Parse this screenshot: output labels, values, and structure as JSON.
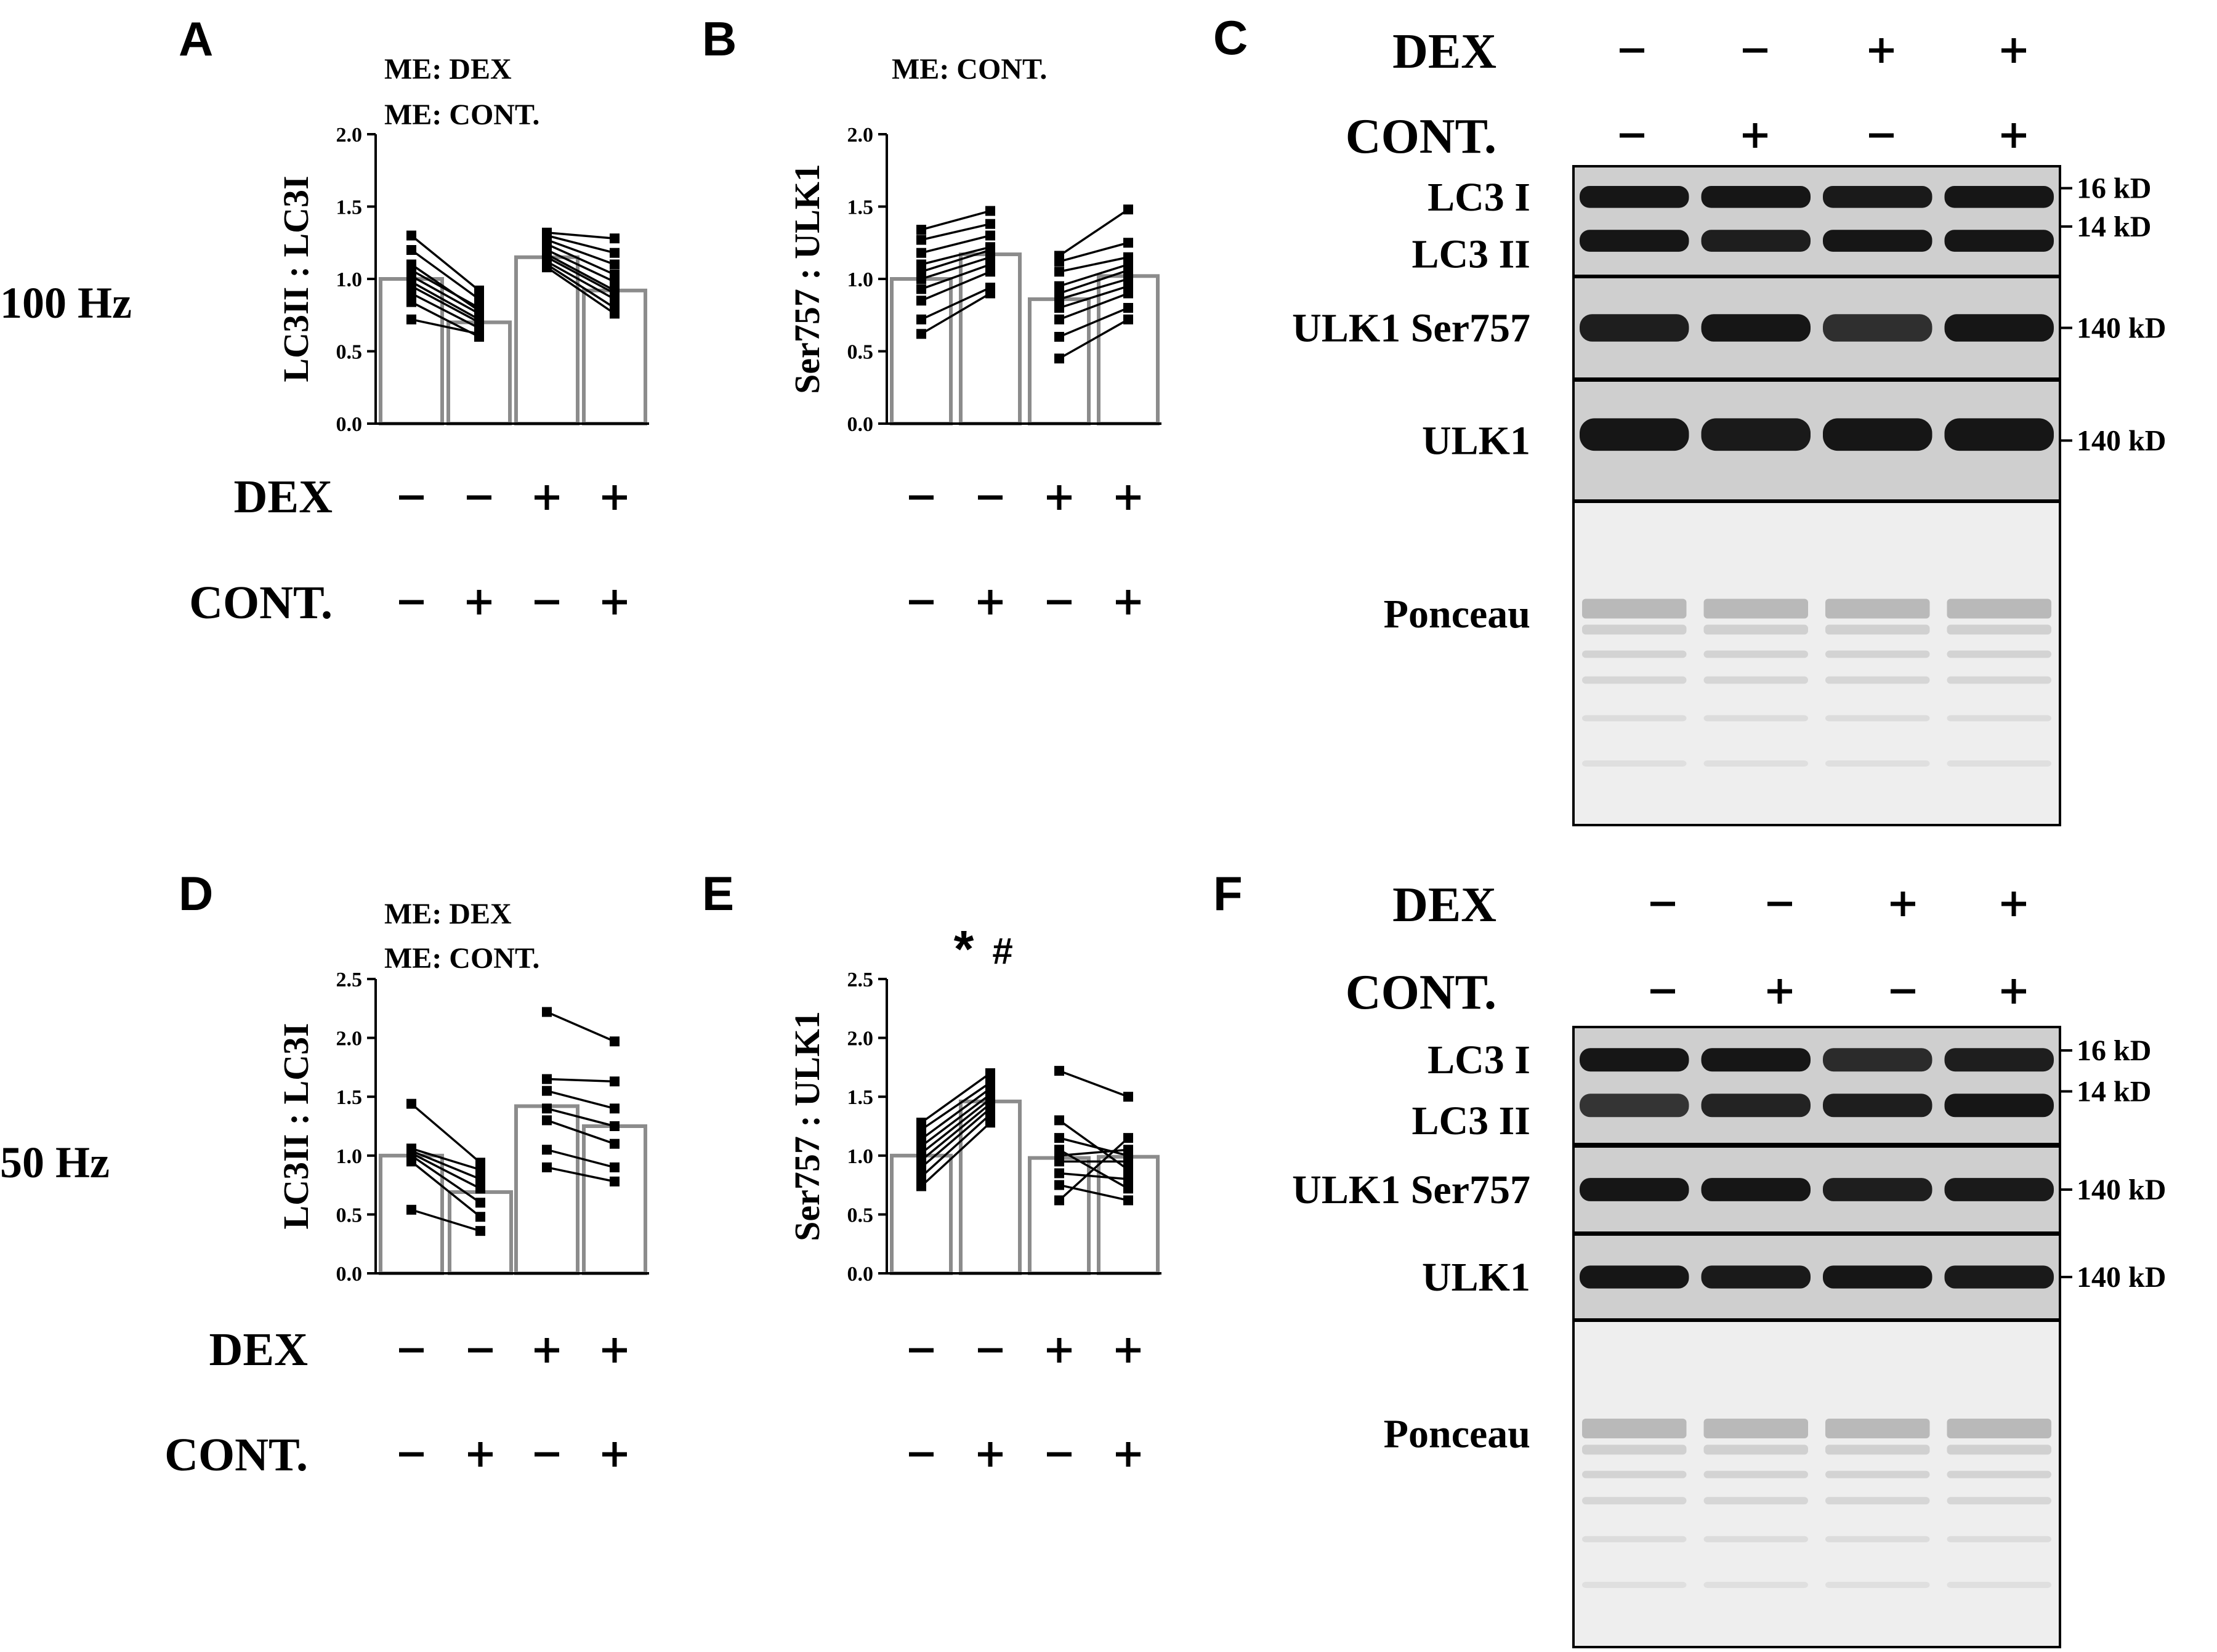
{
  "freq_labels": [
    "100 Hz",
    "50 Hz"
  ],
  "chart_data": [
    {
      "panel": "A",
      "type": "bar",
      "categories": [
        "DEX -/CONT. -",
        "DEX -/CONT. +",
        "DEX +/CONT. -",
        "DEX +/CONT. +"
      ],
      "values": [
        1.0,
        0.7,
        1.15,
        0.92
      ],
      "ylabel": "LC3II : LC3I",
      "ylim": [
        0,
        2.0
      ],
      "ytick_labels": [
        "0.0",
        "0.5",
        "1.0",
        "1.5",
        "2.0"
      ],
      "annotations": [
        "ME: DEX",
        "ME: CONT."
      ],
      "paired_points": [
        [
          [
            0.72,
            0.62
          ],
          [
            0.84,
            0.6
          ],
          [
            0.9,
            0.66
          ],
          [
            0.95,
            0.7
          ],
          [
            0.98,
            0.72
          ],
          [
            1.02,
            0.76
          ],
          [
            1.06,
            0.8
          ],
          [
            1.1,
            0.78
          ],
          [
            1.2,
            0.86
          ],
          [
            1.3,
            0.92
          ]
        ],
        [
          [
            1.08,
            0.76
          ],
          [
            1.1,
            0.8
          ],
          [
            1.12,
            0.86
          ],
          [
            1.15,
            0.9
          ],
          [
            1.17,
            0.92
          ],
          [
            1.2,
            0.98
          ],
          [
            1.24,
            1.03
          ],
          [
            1.27,
            1.1
          ],
          [
            1.3,
            1.18
          ],
          [
            1.32,
            1.28
          ]
        ]
      ]
    },
    {
      "panel": "B",
      "type": "bar",
      "categories": [
        "DEX -/CONT. -",
        "DEX -/CONT. +",
        "DEX +/CONT. -",
        "DEX +/CONT. +"
      ],
      "values": [
        1.0,
        1.17,
        0.86,
        1.02
      ],
      "ylabel": "Ser757 : ULK1",
      "ylim": [
        0,
        2.0
      ],
      "ytick_labels": [
        "0.0",
        "0.5",
        "1.0",
        "1.5",
        "2.0"
      ],
      "annotations": [
        "ME: CONT."
      ],
      "paired_points": [
        [
          [
            0.62,
            0.9
          ],
          [
            0.72,
            0.94
          ],
          [
            0.85,
            1.05
          ],
          [
            0.93,
            1.1
          ],
          [
            1.0,
            1.15
          ],
          [
            1.05,
            1.2
          ],
          [
            1.1,
            1.22
          ],
          [
            1.18,
            1.3
          ],
          [
            1.27,
            1.38
          ],
          [
            1.34,
            1.47
          ]
        ],
        [
          [
            0.45,
            0.72
          ],
          [
            0.6,
            0.8
          ],
          [
            0.72,
            0.9
          ],
          [
            0.8,
            0.95
          ],
          [
            0.86,
            1.0
          ],
          [
            0.9,
            1.06
          ],
          [
            0.95,
            1.1
          ],
          [
            1.05,
            1.15
          ],
          [
            1.12,
            1.25
          ],
          [
            1.16,
            1.48
          ]
        ]
      ]
    },
    {
      "panel": "D",
      "type": "bar",
      "categories": [
        "DEX -/CONT. -",
        "DEX -/CONT. +",
        "DEX +/CONT. -",
        "DEX +/CONT. +"
      ],
      "values": [
        1.0,
        0.69,
        1.42,
        1.25
      ],
      "ylabel": "LC3II : LC3I",
      "ylim": [
        0,
        2.5
      ],
      "ytick_labels": [
        "0.0",
        "0.5",
        "1.0",
        "1.5",
        "2.0",
        "2.5"
      ],
      "annotations": [
        "ME: DEX",
        "ME: CONT."
      ],
      "paired_points": [
        [
          [
            0.54,
            0.36
          ],
          [
            0.95,
            0.48
          ],
          [
            1.0,
            0.6
          ],
          [
            1.02,
            0.72
          ],
          [
            1.04,
            0.8
          ],
          [
            1.06,
            0.88
          ],
          [
            1.44,
            0.94
          ]
        ],
        [
          [
            0.9,
            0.78
          ],
          [
            1.05,
            0.9
          ],
          [
            1.3,
            1.1
          ],
          [
            1.4,
            1.25
          ],
          [
            1.55,
            1.4
          ],
          [
            1.65,
            1.63
          ],
          [
            2.22,
            1.97
          ]
        ]
      ]
    },
    {
      "panel": "E",
      "type": "bar",
      "categories": [
        "DEX -/CONT. -",
        "DEX -/CONT. +",
        "DEX +/CONT. -",
        "DEX +/CONT. +"
      ],
      "values": [
        1.0,
        1.46,
        0.98,
        0.99
      ],
      "ylabel": "Ser757 : ULK1",
      "ylim": [
        0,
        2.5
      ],
      "ytick_labels": [
        "0.0",
        "0.5",
        "1.0",
        "1.5",
        "2.0",
        "2.5"
      ],
      "annotations": [
        "*",
        "#"
      ],
      "paired_points": [
        [
          [
            0.74,
            1.28
          ],
          [
            0.82,
            1.35
          ],
          [
            0.9,
            1.4
          ],
          [
            0.96,
            1.44
          ],
          [
            1.02,
            1.48
          ],
          [
            1.08,
            1.52
          ],
          [
            1.14,
            1.57
          ],
          [
            1.22,
            1.62
          ],
          [
            1.28,
            1.7
          ]
        ],
        [
          [
            0.62,
            1.15
          ],
          [
            0.75,
            0.62
          ],
          [
            0.85,
            0.8
          ],
          [
            0.95,
            0.95
          ],
          [
            1.0,
            1.05
          ],
          [
            1.05,
            0.72
          ],
          [
            1.15,
            1.0
          ],
          [
            1.3,
            0.88
          ],
          [
            1.72,
            1.5
          ]
        ]
      ]
    }
  ],
  "treatment_rows": {
    "dex_label": "DEX",
    "cont_label": "CONT.",
    "dex_signs": [
      "-",
      "-",
      "+",
      "+"
    ],
    "cont_signs": [
      "-",
      "+",
      "-",
      "+"
    ]
  },
  "blots": [
    {
      "panel": "C",
      "header": {
        "dex_label": "DEX",
        "cont_label": "CONT.",
        "dex_signs": [
          "-",
          "-",
          "+",
          "+"
        ],
        "cont_signs": [
          "-",
          "+",
          "-",
          "+"
        ]
      },
      "rows": [
        {
          "labels": [
            "LC3 I",
            "LC3 II"
          ],
          "markers": [
            "16 kD",
            "14 kD"
          ]
        },
        {
          "labels": [
            "ULK1 Ser757"
          ],
          "markers": [
            "140 kD"
          ]
        },
        {
          "labels": [
            "ULK1"
          ],
          "markers": [
            "140 kD"
          ]
        },
        {
          "labels": [
            "Ponceau"
          ],
          "markers": []
        }
      ]
    },
    {
      "panel": "F",
      "header": {
        "dex_label": "DEX",
        "cont_label": "CONT.",
        "dex_signs": [
          "-",
          "-",
          "+",
          "+"
        ],
        "cont_signs": [
          "-",
          "+",
          "-",
          "+"
        ]
      },
      "rows": [
        {
          "labels": [
            "LC3 I",
            "LC3 II"
          ],
          "markers": [
            "16 kD",
            "14 kD"
          ]
        },
        {
          "labels": [
            "ULK1 Ser757"
          ],
          "markers": [
            "140 kD"
          ]
        },
        {
          "labels": [
            "ULK1"
          ],
          "markers": [
            "140 kD"
          ]
        },
        {
          "labels": [
            "Ponceau"
          ],
          "markers": []
        }
      ]
    }
  ],
  "colors": {
    "bar_edge": "#8c8c8c",
    "ink": "#000000",
    "blot_dark": "#161616",
    "membrane": "#e3e3e3"
  }
}
